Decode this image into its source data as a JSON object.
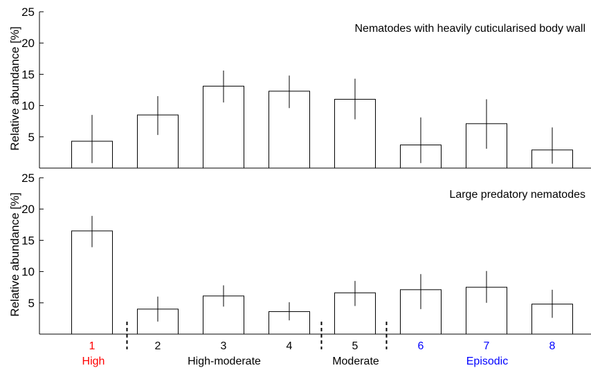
{
  "colors": {
    "high": "#ff0000",
    "high_moderate": "#000000",
    "moderate": "#000000",
    "episodic": "#0000ff"
  },
  "chart_data": [
    {
      "type": "bar",
      "title": "Nematodes with heavily cuticularised body wall",
      "xlabel": "",
      "ylabel": "Relative abundance [%]",
      "ylim": [
        0,
        25
      ],
      "yticks": [
        5,
        10,
        15,
        20,
        25
      ],
      "categories": [
        "1",
        "2",
        "3",
        "4",
        "5",
        "6",
        "7",
        "8"
      ],
      "values": [
        4.3,
        8.5,
        13.1,
        12.3,
        11.0,
        3.7,
        7.1,
        2.9
      ],
      "error_low": [
        0.8,
        5.3,
        10.5,
        9.6,
        7.8,
        0.8,
        3.1,
        0.7
      ],
      "error_high": [
        8.5,
        11.5,
        15.6,
        14.8,
        14.3,
        8.1,
        11.0,
        6.5
      ]
    },
    {
      "type": "bar",
      "title": "Large predatory nematodes",
      "xlabel": "",
      "ylabel": "Relative abundance [%]",
      "ylim": [
        0,
        25
      ],
      "yticks": [
        5,
        10,
        15,
        20,
        25
      ],
      "categories": [
        "1",
        "2",
        "3",
        "4",
        "5",
        "6",
        "7",
        "8"
      ],
      "category_groups": [
        "high",
        "high_moderate",
        "high_moderate",
        "high_moderate",
        "moderate",
        "episodic",
        "episodic",
        "episodic"
      ],
      "values": [
        16.5,
        4.0,
        6.1,
        3.6,
        6.6,
        7.1,
        7.5,
        4.8
      ],
      "error_low": [
        13.9,
        2.0,
        4.4,
        2.2,
        4.5,
        4.0,
        5.0,
        2.6
      ],
      "error_high": [
        18.9,
        6.0,
        7.8,
        5.1,
        8.5,
        9.6,
        10.1,
        7.1
      ],
      "groups": [
        {
          "key": "high",
          "label": "High"
        },
        {
          "key": "high_moderate",
          "label": "High-moderate"
        },
        {
          "key": "moderate",
          "label": "Moderate"
        },
        {
          "key": "episodic",
          "label": "Episodic"
        }
      ]
    }
  ]
}
